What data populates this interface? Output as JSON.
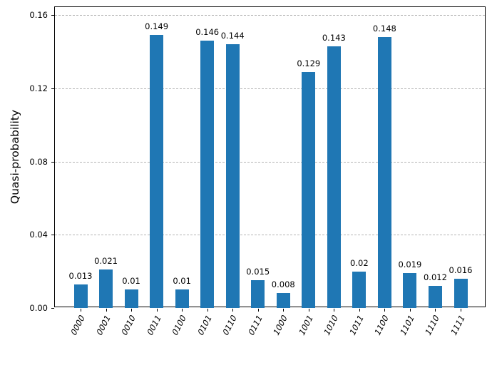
{
  "chart_data": {
    "type": "bar",
    "title": "",
    "xlabel": "",
    "ylabel": "Quasi-probability",
    "categories": [
      "0000",
      "0001",
      "0010",
      "0011",
      "0100",
      "0101",
      "0110",
      "0111",
      "1000",
      "1001",
      "1010",
      "1011",
      "1100",
      "1101",
      "1110",
      "1111"
    ],
    "values": [
      0.013,
      0.021,
      0.01,
      0.149,
      0.01,
      0.146,
      0.144,
      0.015,
      0.008,
      0.129,
      0.143,
      0.02,
      0.148,
      0.019,
      0.012,
      0.016
    ],
    "value_labels": [
      "0.013",
      "0.021",
      "0.01",
      "0.149",
      "0.01",
      "0.146",
      "0.144",
      "0.015",
      "0.008",
      "0.129",
      "0.143",
      "0.02",
      "0.148",
      "0.019",
      "0.012",
      "0.016"
    ],
    "yticks": [
      0.0,
      0.04,
      0.08,
      0.12,
      0.16
    ],
    "ytick_labels": [
      "0.00",
      "0.04",
      "0.08",
      "0.12",
      "0.16"
    ],
    "ylim": [
      0,
      0.1643
    ],
    "grid": "horizontal-dashed",
    "legend": null,
    "bar_color": "#1f77b4",
    "grid_color": "#b5b5b5",
    "axis_color": "#000000",
    "xtick_rotation_deg": 63
  }
}
